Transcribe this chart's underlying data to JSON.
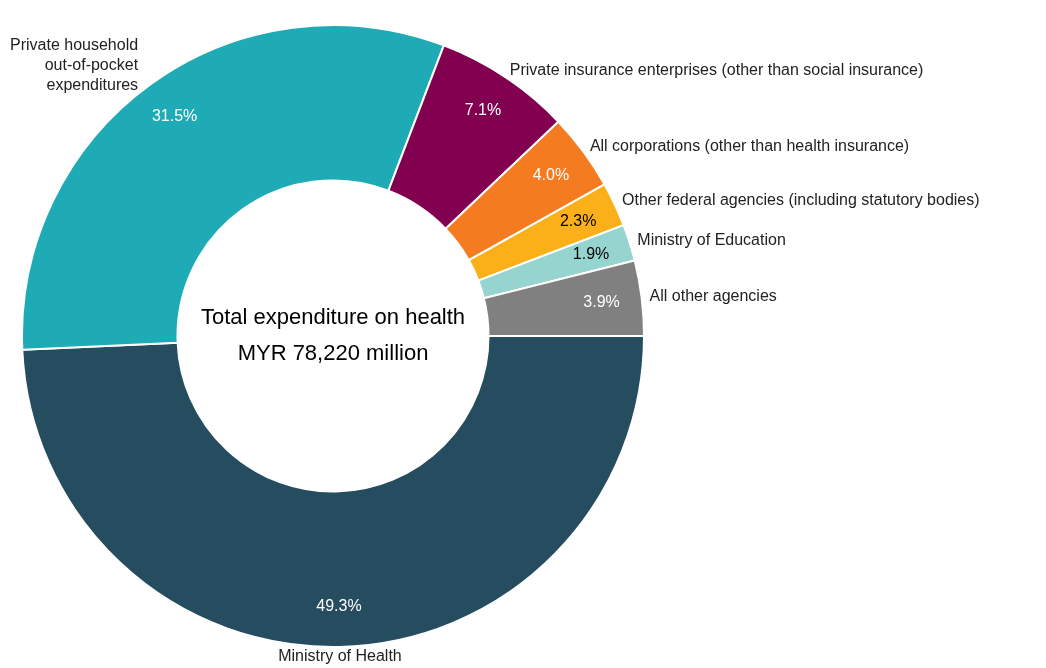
{
  "chart_data": {
    "type": "donut",
    "categories": [
      "Ministry of Health",
      "Private household out-of-pocket expenditures",
      "Private insurance enterprises (other than social insurance)",
      "All corporations (other than health insurance)",
      "Other federal agencies (including statutory bodies)",
      "Ministry of Education",
      "All other agencies"
    ],
    "values": [
      49.3,
      31.5,
      7.1,
      4.0,
      2.3,
      1.9,
      3.9
    ],
    "value_labels": [
      "49.3%",
      "31.5%",
      "7.1%",
      "4.0%",
      "2.3%",
      "1.9%",
      "3.9%"
    ],
    "colors": [
      "#264d5f",
      "#1eabb5",
      "#820050",
      "#f47b20",
      "#fbb019",
      "#96d4d0",
      "#808080"
    ],
    "annotations": [
      "Total expenditure on health",
      "MYR 78,220 million"
    ],
    "legend": false
  }
}
